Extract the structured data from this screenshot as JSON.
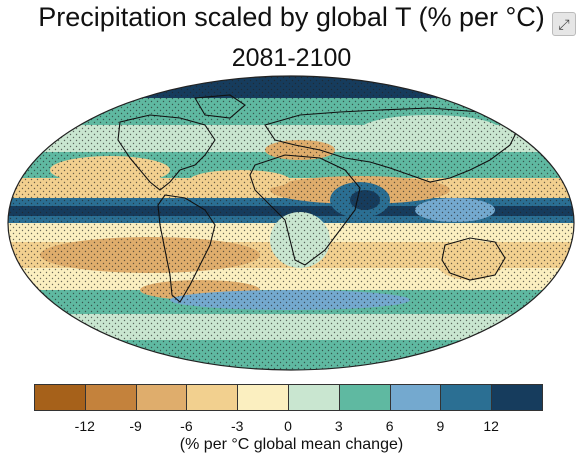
{
  "figure": {
    "title": "Precipitation scaled by global T (% per °C)",
    "period": "2081-2100",
    "units_label": "(% per °C global mean change)",
    "corner_icon": "expand-icon"
  },
  "colorbar": {
    "colors": [
      "#a6611a",
      "#c4823c",
      "#dfad6c",
      "#f2d08f",
      "#fbefc0",
      "#c9e6d0",
      "#5fb9a1",
      "#74a9cf",
      "#2b6f93",
      "#163c5d"
    ],
    "tick_labels": [
      "-12",
      "-9",
      "-6",
      "-3",
      "0",
      "3",
      "6",
      "9",
      "12"
    ]
  }
}
